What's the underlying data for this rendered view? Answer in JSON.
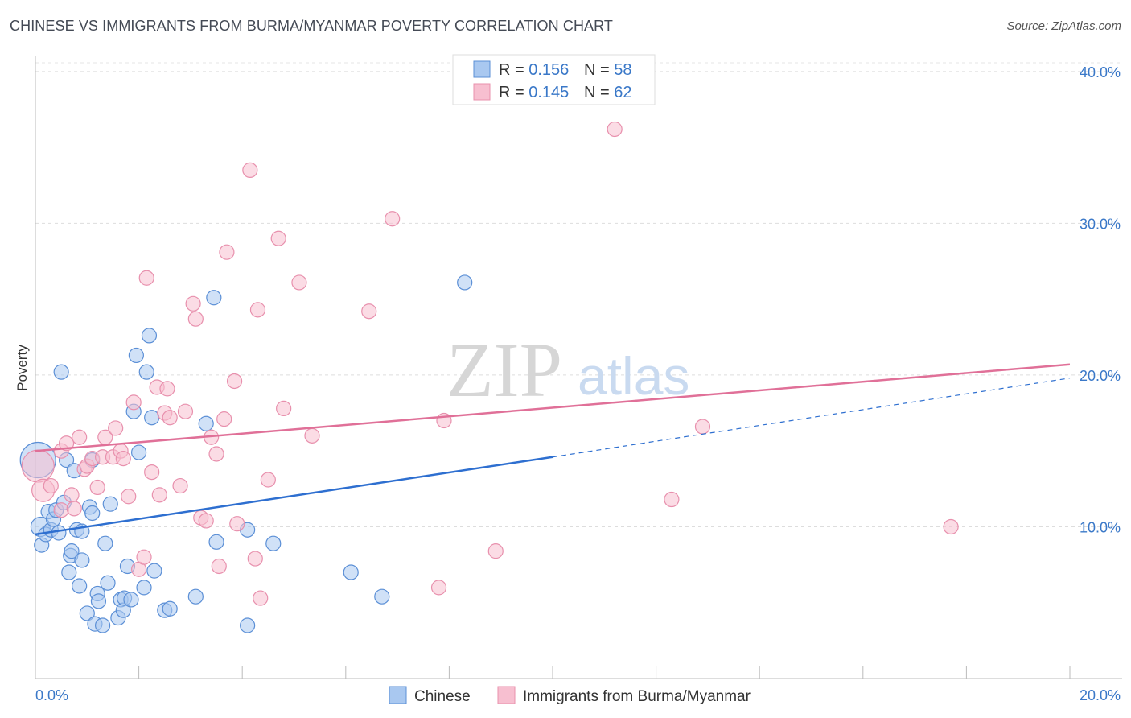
{
  "chart_data": {
    "type": "scatter",
    "title": "CHINESE VS IMMIGRANTS FROM BURMA/MYANMAR POVERTY CORRELATION CHART",
    "source": "Source: ZipAtlas.com",
    "ylabel": "Poverty",
    "xlim": [
      0,
      20
    ],
    "ylim": [
      0,
      41
    ],
    "x_tick_labels": [
      "0.0%",
      "20.0%"
    ],
    "y_ticks": [
      10,
      20,
      30,
      40
    ],
    "y_tick_labels": [
      "10.0%",
      "20.0%",
      "30.0%",
      "40.0%"
    ],
    "watermark": {
      "zip": "ZIP",
      "atlas": "atlas"
    },
    "legend_position": "top-center",
    "colors": {
      "chinese_fill": "#a9c8f0",
      "chinese_stroke": "#5b8fd6",
      "chinese_line": "#2e6fd0",
      "burma_fill": "#f7bfd0",
      "burma_stroke": "#e890ad",
      "burma_line": "#e07098",
      "value_text": "#3a78c8",
      "axis_text": "#3a78c8"
    },
    "legend": [
      {
        "r_label": "R = ",
        "r_value": "0.156",
        "n_label": "N = ",
        "n_value": "58"
      },
      {
        "r_label": "R = ",
        "r_value": "0.145",
        "n_label": "N = ",
        "n_value": "62"
      }
    ],
    "series": [
      {
        "name": "Chinese",
        "trend": {
          "x0": 0,
          "y0": 9.5,
          "x1": 10,
          "y1": 14.6,
          "dash_to_x": 20,
          "dash_to_y": 19.8
        },
        "points": [
          [
            0.05,
            14.4,
            22
          ],
          [
            0.1,
            10.0,
            12
          ],
          [
            0.12,
            8.8,
            9
          ],
          [
            0.2,
            9.5,
            9
          ],
          [
            0.25,
            11.0,
            9
          ],
          [
            0.3,
            9.8,
            9
          ],
          [
            0.35,
            10.5,
            9
          ],
          [
            0.4,
            11.1,
            9
          ],
          [
            0.45,
            9.6,
            9
          ],
          [
            0.5,
            20.2,
            9
          ],
          [
            0.55,
            11.6,
            9
          ],
          [
            0.6,
            14.4,
            9
          ],
          [
            0.65,
            7.0,
            9
          ],
          [
            0.68,
            8.1,
            9
          ],
          [
            0.7,
            8.4,
            9
          ],
          [
            0.75,
            13.7,
            9
          ],
          [
            0.8,
            9.8,
            9
          ],
          [
            0.85,
            6.1,
            9
          ],
          [
            0.9,
            9.7,
            9
          ],
          [
            0.9,
            7.8,
            9
          ],
          [
            1.0,
            4.3,
            9
          ],
          [
            1.05,
            11.3,
            9
          ],
          [
            1.1,
            14.4,
            9
          ],
          [
            1.1,
            10.9,
            9
          ],
          [
            1.15,
            3.6,
            9
          ],
          [
            1.2,
            5.6,
            9
          ],
          [
            1.22,
            5.1,
            9
          ],
          [
            1.3,
            3.5,
            9
          ],
          [
            1.35,
            8.9,
            9
          ],
          [
            1.4,
            6.3,
            9
          ],
          [
            1.45,
            11.5,
            9
          ],
          [
            1.6,
            4.0,
            9
          ],
          [
            1.65,
            5.2,
            9
          ],
          [
            1.7,
            4.5,
            9
          ],
          [
            1.72,
            5.3,
            9
          ],
          [
            1.78,
            7.4,
            9
          ],
          [
            1.85,
            5.2,
            9
          ],
          [
            1.9,
            17.6,
            9
          ],
          [
            1.95,
            21.3,
            9
          ],
          [
            2.0,
            14.9,
            9
          ],
          [
            2.1,
            6.0,
            9
          ],
          [
            2.15,
            20.2,
            9
          ],
          [
            2.2,
            22.6,
            9
          ],
          [
            2.25,
            17.2,
            9
          ],
          [
            2.3,
            7.1,
            9
          ],
          [
            2.5,
            4.5,
            9
          ],
          [
            2.6,
            4.6,
            9
          ],
          [
            3.1,
            5.4,
            9
          ],
          [
            3.3,
            16.8,
            9
          ],
          [
            3.45,
            25.1,
            9
          ],
          [
            3.5,
            9.0,
            9
          ],
          [
            4.1,
            3.5,
            9
          ],
          [
            4.1,
            9.8,
            9
          ],
          [
            4.6,
            8.9,
            9
          ],
          [
            6.1,
            7.0,
            9
          ],
          [
            6.7,
            5.4,
            9
          ],
          [
            8.3,
            26.1,
            9
          ]
        ]
      },
      {
        "name": "Immigrants from Burma/Myanmar",
        "trend": {
          "x0": 0,
          "y0": 15.0,
          "x1": 20,
          "y1": 20.7
        },
        "points": [
          [
            0.05,
            14.0,
            20
          ],
          [
            0.15,
            12.4,
            14
          ],
          [
            0.3,
            12.7,
            9
          ],
          [
            0.5,
            11.1,
            9
          ],
          [
            0.5,
            15.0,
            9
          ],
          [
            0.6,
            15.5,
            9
          ],
          [
            0.7,
            12.1,
            9
          ],
          [
            0.75,
            11.2,
            9
          ],
          [
            0.85,
            15.9,
            9
          ],
          [
            0.95,
            13.8,
            9
          ],
          [
            1.0,
            14.0,
            9
          ],
          [
            1.1,
            14.5,
            9
          ],
          [
            1.2,
            12.6,
            9
          ],
          [
            1.3,
            14.6,
            9
          ],
          [
            1.35,
            15.9,
            9
          ],
          [
            1.5,
            14.6,
            9
          ],
          [
            1.55,
            16.5,
            9
          ],
          [
            1.65,
            15.0,
            9
          ],
          [
            1.7,
            14.5,
            9
          ],
          [
            1.8,
            12.0,
            9
          ],
          [
            1.9,
            18.2,
            9
          ],
          [
            2.0,
            7.2,
            9
          ],
          [
            2.1,
            8.0,
            9
          ],
          [
            2.15,
            26.4,
            9
          ],
          [
            2.25,
            13.6,
            9
          ],
          [
            2.35,
            19.2,
            9
          ],
          [
            2.4,
            12.1,
            9
          ],
          [
            2.5,
            17.5,
            9
          ],
          [
            2.55,
            19.1,
            9
          ],
          [
            2.6,
            17.2,
            9
          ],
          [
            2.8,
            12.7,
            9
          ],
          [
            2.9,
            17.6,
            9
          ],
          [
            3.05,
            24.7,
            9
          ],
          [
            3.1,
            23.7,
            9
          ],
          [
            3.2,
            10.6,
            9
          ],
          [
            3.3,
            10.4,
            9
          ],
          [
            3.4,
            15.9,
            9
          ],
          [
            3.5,
            14.8,
            9
          ],
          [
            3.55,
            7.4,
            9
          ],
          [
            3.7,
            28.1,
            9
          ],
          [
            3.65,
            17.1,
            9
          ],
          [
            3.85,
            19.6,
            9
          ],
          [
            3.9,
            10.2,
            9
          ],
          [
            4.15,
            33.5,
            9
          ],
          [
            4.25,
            7.9,
            9
          ],
          [
            4.3,
            24.3,
            9
          ],
          [
            4.35,
            5.3,
            9
          ],
          [
            4.5,
            13.1,
            9
          ],
          [
            4.7,
            29.0,
            9
          ],
          [
            4.8,
            17.8,
            9
          ],
          [
            5.1,
            26.1,
            9
          ],
          [
            5.35,
            16.0,
            9
          ],
          [
            6.45,
            24.2,
            9
          ],
          [
            6.9,
            30.3,
            9
          ],
          [
            7.8,
            6.0,
            9
          ],
          [
            7.9,
            17.0,
            9
          ],
          [
            8.9,
            8.4,
            9
          ],
          [
            11.2,
            36.2,
            9
          ],
          [
            12.3,
            11.8,
            9
          ],
          [
            12.9,
            16.6,
            9
          ],
          [
            17.7,
            10.0,
            9
          ]
        ]
      }
    ],
    "bottom_legend": [
      "Chinese",
      "Immigrants from Burma/Myanmar"
    ]
  }
}
